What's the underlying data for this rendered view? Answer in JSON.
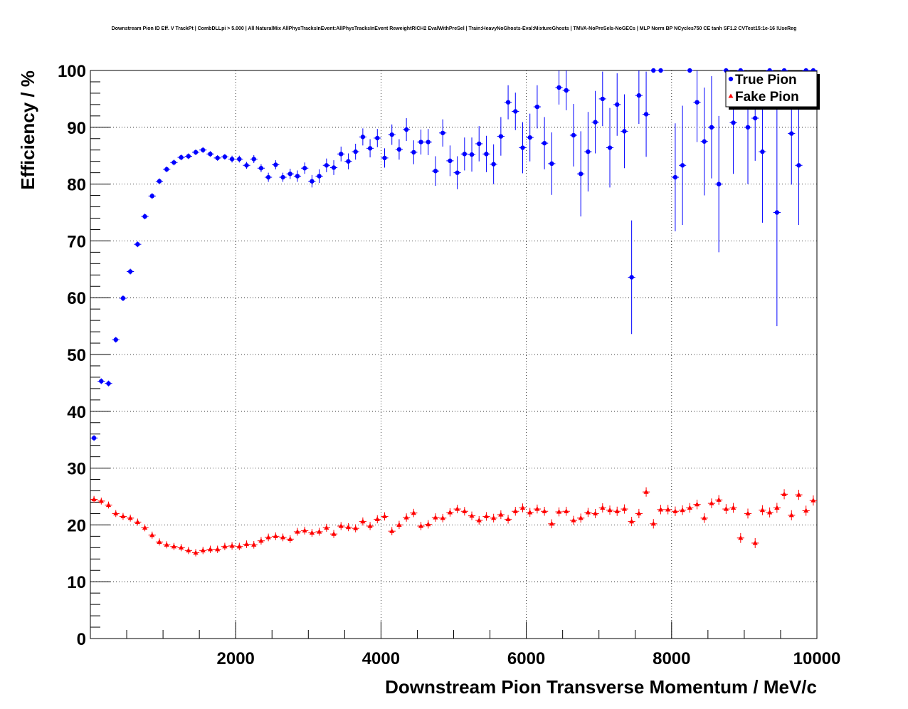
{
  "chart_data": {
    "type": "scatter",
    "title": "Downstream Pion ID Eff. V TrackPt | CombDLLpi > 5.000 | All NaturalMix AllPhysTracksInEvent:AllPhysTracksInEvent ReweightRICH2 EvalWithPreSel | Train:HeavyNoGhosts-Eval:MixtureGhosts | TMVA-NoPreSels-NoGECs | MLP Norm BP NCycles750 CE tanh SF1.2 CVTest15:1e-16 !UseReg",
    "xlabel": "Downstream Pion Transverse Momentum / MeV/c",
    "ylabel": "Efficiency / %",
    "xlim": [
      0,
      10000
    ],
    "ylim": [
      0,
      100
    ],
    "x_ticks": [
      2000,
      4000,
      6000,
      8000,
      10000
    ],
    "y_ticks": [
      0,
      10,
      20,
      30,
      40,
      50,
      60,
      70,
      80,
      90,
      100
    ],
    "grid": true,
    "legend_position": "top-right",
    "bin_width": 100,
    "colors": {
      "true_pion": "#0000ff",
      "fake_pion": "#ff0000"
    },
    "series": [
      {
        "name": "True Pion",
        "marker": "circle",
        "x": [
          50,
          150,
          250,
          350,
          450,
          550,
          650,
          750,
          850,
          950,
          1050,
          1150,
          1250,
          1350,
          1450,
          1550,
          1650,
          1750,
          1850,
          1950,
          2050,
          2150,
          2250,
          2350,
          2450,
          2550,
          2650,
          2750,
          2850,
          2950,
          3050,
          3150,
          3250,
          3350,
          3450,
          3550,
          3650,
          3750,
          3850,
          3950,
          4050,
          4150,
          4250,
          4350,
          4450,
          4550,
          4650,
          4750,
          4850,
          4950,
          5050,
          5150,
          5250,
          5350,
          5450,
          5550,
          5650,
          5750,
          5850,
          5950,
          6050,
          6150,
          6250,
          6350,
          6450,
          6550,
          6650,
          6750,
          6850,
          6950,
          7050,
          7150,
          7250,
          7350,
          7450,
          7550,
          7650,
          7750,
          7850,
          7950,
          8050,
          8150,
          8250,
          8350,
          8450,
          8550,
          8650,
          8750,
          8850,
          8950,
          9050,
          9150,
          9250,
          9350,
          9450,
          9550,
          9650,
          9750,
          9850,
          9950
        ],
        "y": [
          35.3,
          45.3,
          44.9,
          52.6,
          59.9,
          64.6,
          69.4,
          74.3,
          77.9,
          80.5,
          82.6,
          83.8,
          84.7,
          84.9,
          85.6,
          86.0,
          85.3,
          84.6,
          84.8,
          84.4,
          84.4,
          83.3,
          84.4,
          82.8,
          81.2,
          83.4,
          81.2,
          81.8,
          81.4,
          82.8,
          80.5,
          81.4,
          83.3,
          82.9,
          85.3,
          84.0,
          85.7,
          88.3,
          86.3,
          88.1,
          84.6,
          88.7,
          86.1,
          89.6,
          85.6,
          87.4,
          87.4,
          82.3,
          89.0,
          84.1,
          82.0,
          85.3,
          85.2,
          87.1,
          85.3,
          83.5,
          88.4,
          94.4,
          92.8,
          86.4,
          88.2,
          93.6,
          87.2,
          83.6,
          97.0,
          96.5,
          88.6,
          81.8,
          85.7,
          90.9,
          95.0,
          86.4,
          94.0,
          89.3,
          63.6,
          95.6,
          92.3,
          100.0,
          100.0,
          null,
          81.2,
          83.3,
          100.0,
          94.4,
          87.5,
          90.0,
          80.0,
          100.0,
          90.8,
          100.0,
          90.0,
          91.6,
          85.7,
          100.0,
          75.0,
          100.0,
          88.9,
          83.3,
          100.0,
          100.0
        ],
        "y_err": [
          0.5,
          0.5,
          0.5,
          0.5,
          0.5,
          0.5,
          0.5,
          0.5,
          0.5,
          0.5,
          0.5,
          0.5,
          0.5,
          0.5,
          0.5,
          0.5,
          0.5,
          0.5,
          0.5,
          0.6,
          0.6,
          0.6,
          0.7,
          0.7,
          0.8,
          0.8,
          0.8,
          0.9,
          1.0,
          1.0,
          1.1,
          1.2,
          1.2,
          1.3,
          1.3,
          1.4,
          1.4,
          1.5,
          1.6,
          1.6,
          1.7,
          1.8,
          1.8,
          2.0,
          2.1,
          2.2,
          2.3,
          2.6,
          2.4,
          2.7,
          2.9,
          2.9,
          3.0,
          3.1,
          3.2,
          3.5,
          3.4,
          3.0,
          3.3,
          4.5,
          4.2,
          3.8,
          4.6,
          5.5,
          3.0,
          3.5,
          5.5,
          7.5,
          7.0,
          5.5,
          4.8,
          7.0,
          5.5,
          6.5,
          10.0,
          5.0,
          7.5,
          0,
          0,
          0,
          9.5,
          10.5,
          0,
          7.0,
          9.5,
          9.0,
          12.0,
          0,
          9.0,
          0,
          10.0,
          7.5,
          12.5,
          0,
          20.0,
          0,
          9.0,
          10.5,
          0,
          0
        ]
      },
      {
        "name": "Fake Pion",
        "marker": "triangle",
        "x": [
          50,
          150,
          250,
          350,
          450,
          550,
          650,
          750,
          850,
          950,
          1050,
          1150,
          1250,
          1350,
          1450,
          1550,
          1650,
          1750,
          1850,
          1950,
          2050,
          2150,
          2250,
          2350,
          2450,
          2550,
          2650,
          2750,
          2850,
          2950,
          3050,
          3150,
          3250,
          3350,
          3450,
          3550,
          3650,
          3750,
          3850,
          3950,
          4050,
          4150,
          4250,
          4350,
          4450,
          4550,
          4650,
          4750,
          4850,
          4950,
          5050,
          5150,
          5250,
          5350,
          5450,
          5550,
          5650,
          5750,
          5850,
          5950,
          6050,
          6150,
          6250,
          6350,
          6450,
          6550,
          6650,
          6750,
          6850,
          6950,
          7050,
          7150,
          7250,
          7350,
          7450,
          7550,
          7650,
          7750,
          7850,
          7950,
          8050,
          8150,
          8250,
          8350,
          8450,
          8550,
          8650,
          8750,
          8850,
          8950,
          9050,
          9150,
          9250,
          9350,
          9450,
          9550,
          9650,
          9750,
          9850,
          9950
        ],
        "y": [
          24.5,
          24.2,
          23.5,
          22.0,
          21.5,
          21.2,
          20.5,
          19.5,
          18.2,
          17.0,
          16.5,
          16.2,
          16.0,
          15.5,
          15.1,
          15.5,
          15.7,
          15.7,
          16.2,
          16.3,
          16.2,
          16.6,
          16.5,
          17.2,
          17.8,
          18.0,
          17.8,
          17.5,
          18.8,
          19.0,
          18.6,
          18.8,
          19.5,
          18.4,
          19.8,
          19.6,
          19.4,
          20.6,
          19.8,
          21.0,
          21.5,
          18.9,
          20.0,
          21.3,
          22.1,
          19.8,
          20.1,
          21.3,
          21.2,
          22.2,
          22.8,
          22.4,
          21.6,
          20.8,
          21.5,
          21.2,
          21.8,
          21.0,
          22.4,
          23.0,
          22.2,
          22.8,
          22.4,
          20.2,
          22.3,
          22.4,
          20.8,
          21.2,
          22.2,
          22.0,
          23.0,
          22.6,
          22.4,
          22.8,
          20.6,
          22.0,
          25.8,
          20.2,
          22.7,
          22.7,
          22.4,
          22.6,
          23.0,
          23.6,
          21.2,
          23.8,
          24.4,
          22.8,
          23.0,
          17.7,
          22.0,
          16.8,
          22.6,
          22.2,
          23.0,
          25.4,
          21.7,
          25.3,
          22.5,
          24.3
        ]
      }
    ]
  }
}
